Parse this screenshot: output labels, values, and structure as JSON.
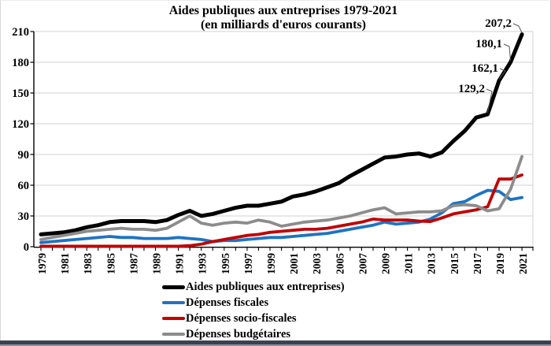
{
  "chart_data": {
    "type": "line",
    "title": "Aides publiques aux entreprises 1979-2021",
    "subtitle": "(en milliards d'euros courants)",
    "unit": "milliards d'euros courants",
    "grid": "horizontal",
    "legend_position": "bottom-left",
    "ylim": [
      0,
      210
    ],
    "y_ticks": [
      0,
      30,
      60,
      90,
      120,
      150,
      180,
      210
    ],
    "x_labeled_ticks": [
      1979,
      1981,
      1983,
      1985,
      1987,
      1989,
      1991,
      1993,
      1995,
      1997,
      1999,
      2001,
      2003,
      2005,
      2007,
      2009,
      2011,
      2013,
      2015,
      2017,
      2019,
      2021
    ],
    "x": [
      1979,
      1980,
      1981,
      1982,
      1983,
      1984,
      1985,
      1986,
      1987,
      1988,
      1989,
      1990,
      1991,
      1992,
      1993,
      1994,
      1995,
      1996,
      1997,
      1998,
      1999,
      2000,
      2001,
      2002,
      2003,
      2004,
      2005,
      2006,
      2007,
      2008,
      2009,
      2010,
      2011,
      2012,
      2013,
      2014,
      2015,
      2016,
      2017,
      2018,
      2019,
      2020,
      2021
    ],
    "axis_color": "#000000",
    "grid_color": "#d9d9d9",
    "series": [
      {
        "name": "Aides publiques aux entreprises)",
        "color": "#000000",
        "width": 5,
        "values": [
          12,
          13,
          14,
          16,
          19,
          21,
          24,
          25,
          25,
          25,
          24,
          26,
          31,
          35,
          30,
          32,
          35,
          38,
          40,
          40,
          42,
          44,
          49,
          51,
          54,
          58,
          62,
          69,
          75,
          81,
          87,
          88,
          90,
          91,
          88,
          92,
          103,
          113,
          126,
          129.2,
          162.1,
          180.1,
          207.2
        ]
      },
      {
        "name": "Dépenses fiscales",
        "color": "#1f74c0",
        "width": 3.8,
        "values": [
          4,
          5,
          6,
          7,
          8,
          9,
          10,
          9,
          9,
          8,
          8,
          8,
          9,
          8,
          7,
          5,
          6,
          6,
          7,
          8,
          9,
          9,
          10,
          11,
          12,
          13,
          15,
          17,
          19,
          21,
          24,
          22,
          23,
          24,
          27,
          33,
          42,
          44,
          50,
          55,
          54,
          46,
          48
        ]
      },
      {
        "name": "Dépenses socio-fiscales",
        "color": "#c00000",
        "width": 3.8,
        "values": [
          0.5,
          0.5,
          0.5,
          0.5,
          0.5,
          0.5,
          0.5,
          0.5,
          0.5,
          0.5,
          0.5,
          0.5,
          0.5,
          1,
          2.5,
          5,
          7,
          9,
          11,
          12,
          14,
          15,
          16,
          17,
          17,
          18,
          20,
          22,
          24,
          27,
          26,
          26,
          26,
          25,
          24.5,
          28,
          32,
          34,
          36,
          39,
          66,
          66,
          70
        ]
      },
      {
        "name": "Dépenses budgétaires",
        "color": "#8c8c8c",
        "width": 3.8,
        "values": [
          7,
          9,
          11,
          13,
          15,
          16,
          17,
          18,
          17,
          17,
          16,
          18,
          24,
          30,
          23,
          21,
          23,
          24,
          23,
          26,
          24,
          20,
          22,
          24,
          25,
          26,
          28,
          30,
          33,
          36,
          38,
          32,
          33,
          34,
          34,
          35,
          40,
          41,
          40,
          35,
          37,
          56,
          88
        ]
      }
    ],
    "annotations": [
      {
        "label": "207,2",
        "year": 2021,
        "value": 207.2,
        "text_right_x": 650,
        "text_baseline_y": 34
      },
      {
        "label": "180,1",
        "year": 2020,
        "value": 180.1,
        "text_right_x": 638,
        "text_baseline_y": 60
      },
      {
        "label": "162,1",
        "year": 2019,
        "value": 162.1,
        "text_right_x": 633,
        "text_baseline_y": 91
      },
      {
        "label": "129,2",
        "year": 2018,
        "value": 129.2,
        "text_right_x": 616,
        "text_baseline_y": 117
      }
    ]
  }
}
